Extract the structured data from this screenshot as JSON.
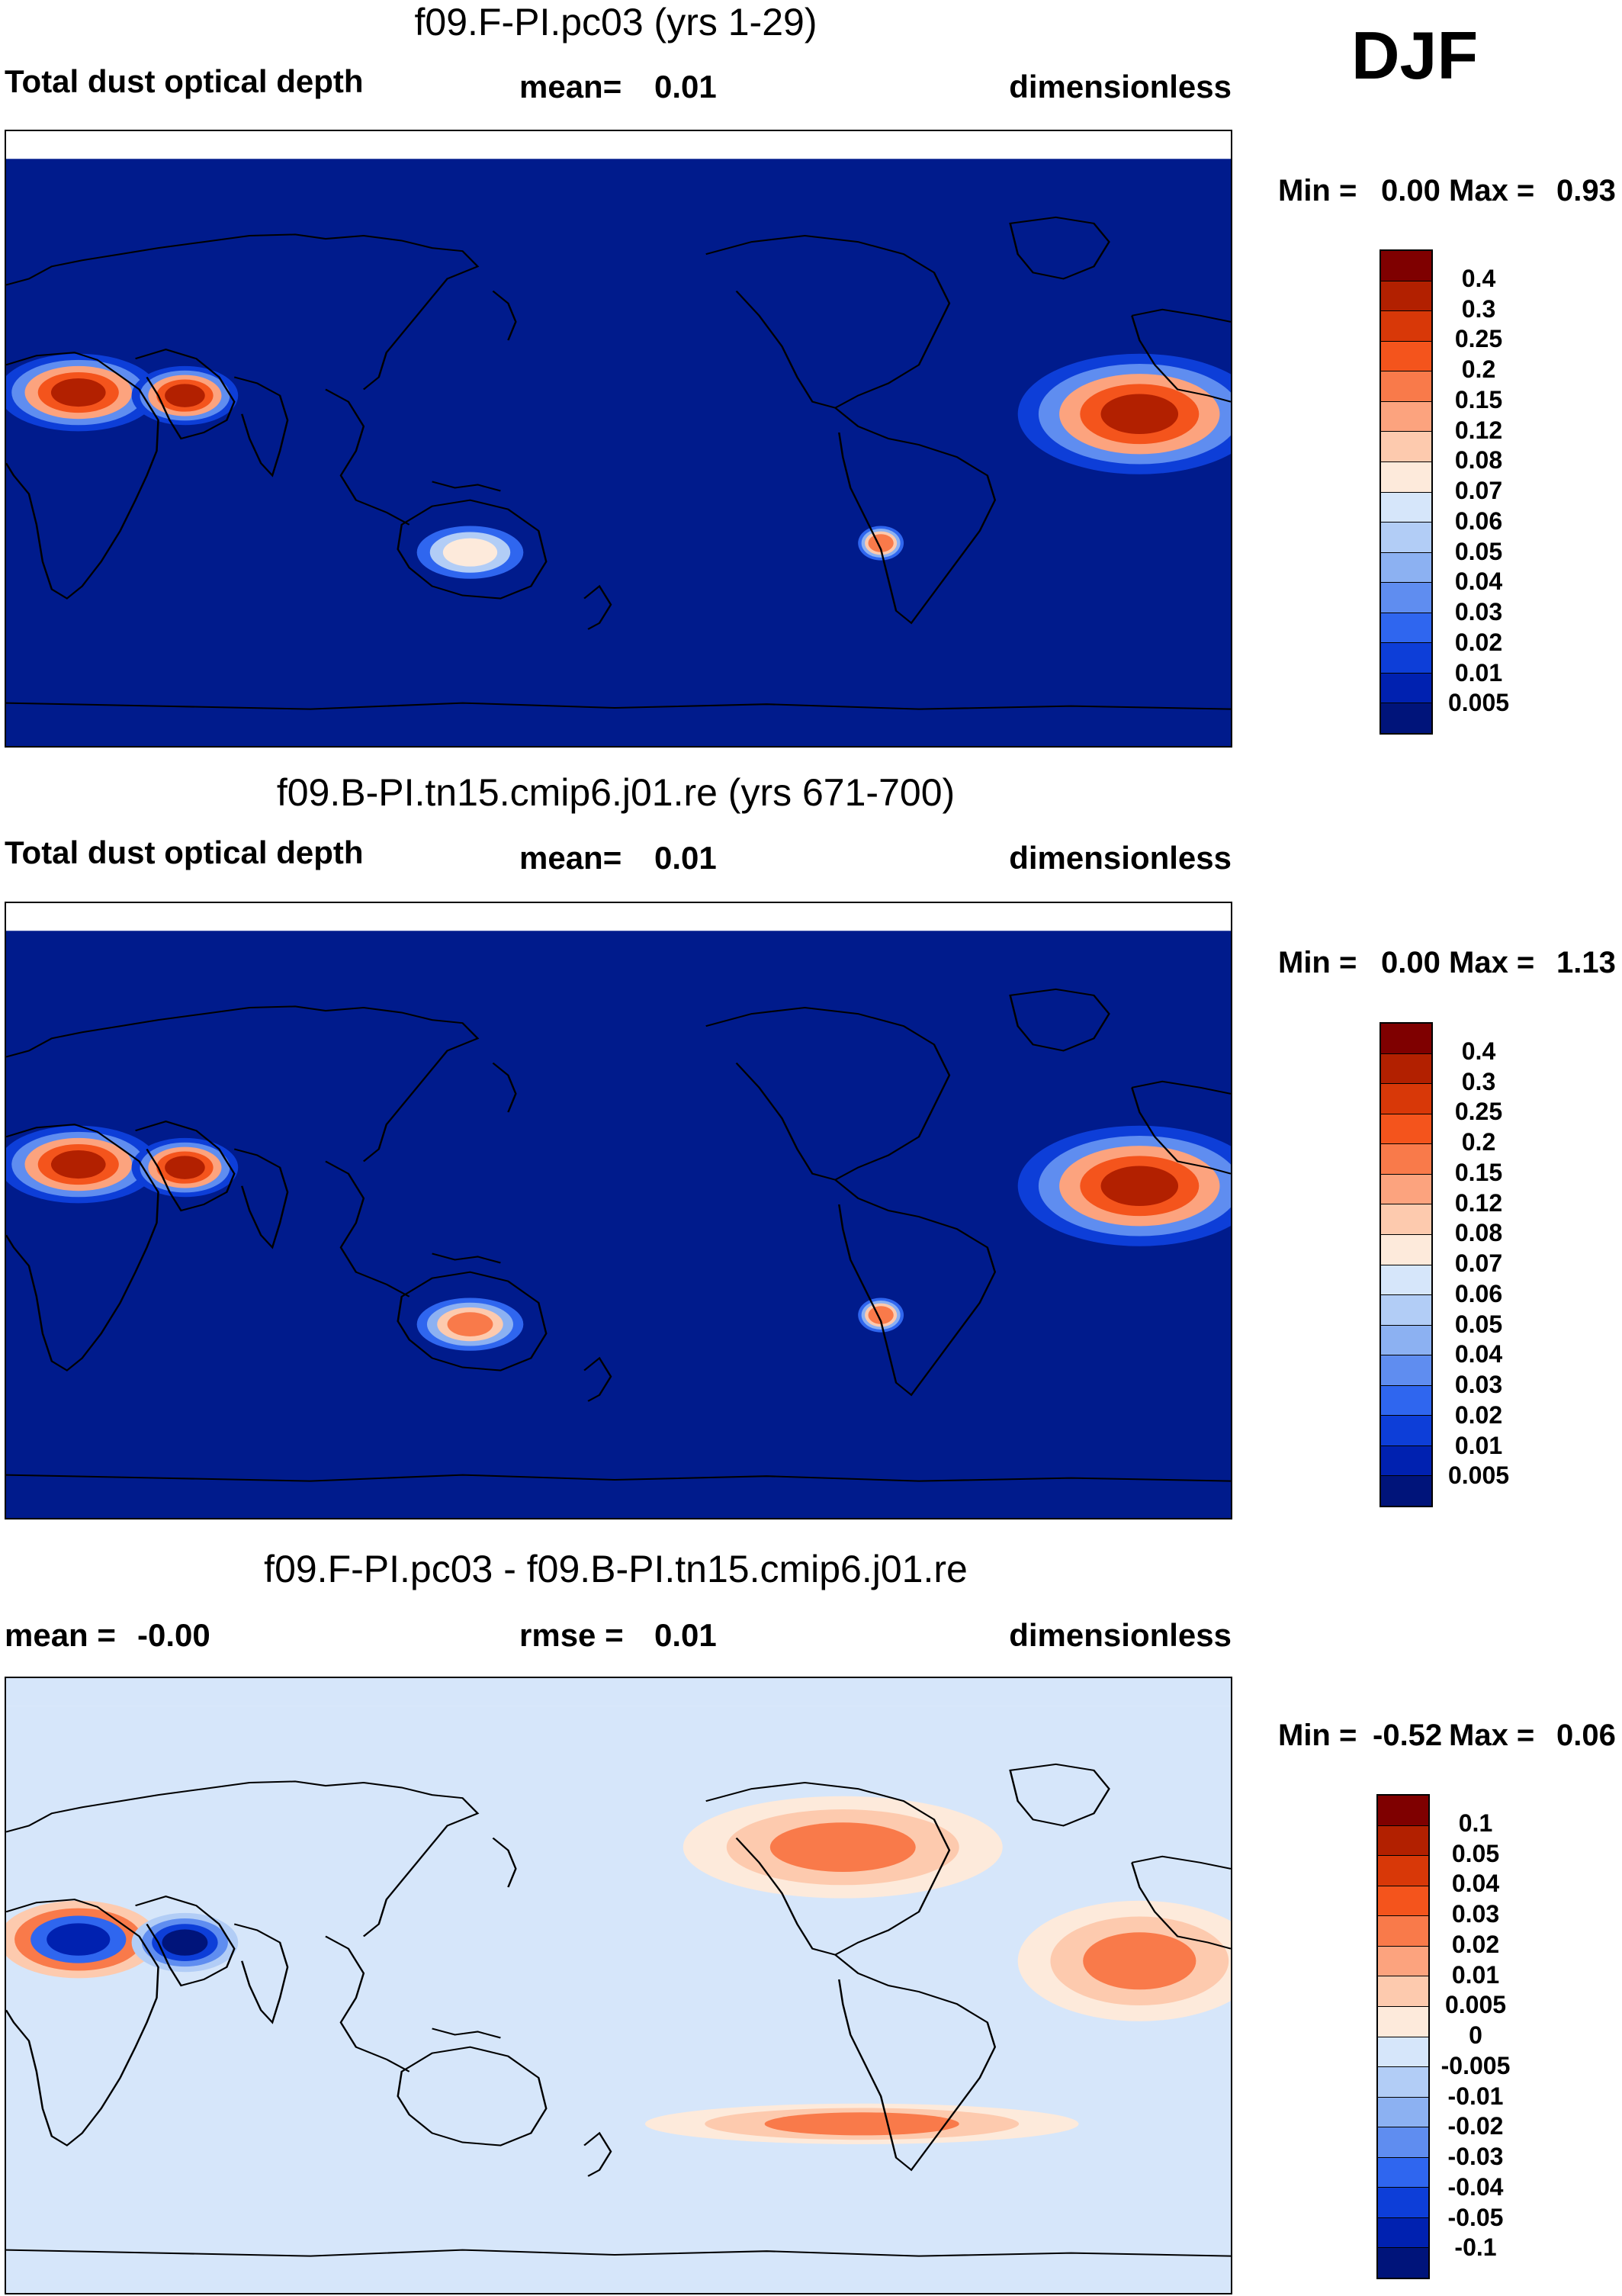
{
  "season": "DJF",
  "panels": [
    {
      "title": "f09.F-PI.pc03 (yrs 1-29)",
      "variable": "Total dust optical depth",
      "stat_label": "mean=",
      "stat_value": "0.01",
      "units": "dimensionless",
      "min_label": "Min =",
      "min_value": "0.00",
      "max_label": "Max =",
      "max_value": "0.93",
      "colorbar_labels": [
        "0.4",
        "0.3",
        "0.25",
        "0.2",
        "0.15",
        "0.12",
        "0.08",
        "0.07",
        "0.06",
        "0.05",
        "0.04",
        "0.03",
        "0.02",
        "0.01",
        "0.005"
      ],
      "colorbar_colors": [
        "#7f0000",
        "#b22000",
        "#d83808",
        "#f4541c",
        "#f97a4a",
        "#fca37e",
        "#fdcaae",
        "#fdeadb",
        "#d6e6fa",
        "#b2cdf6",
        "#8cb1f2",
        "#5f8df0",
        "#2f66ef",
        "#0d3ed8",
        "#0021b0",
        "#00147a"
      ],
      "field_color": "#001b8c",
      "hotspots": [
        {
          "region": "sahara",
          "intensity": "high"
        },
        {
          "region": "arabia",
          "intensity": "high"
        },
        {
          "region": "atlantic-plume",
          "intensity": "high"
        },
        {
          "region": "australia",
          "intensity": "low"
        },
        {
          "region": "atacama",
          "intensity": "medium"
        }
      ]
    },
    {
      "title": "f09.B-PI.tn15.cmip6.j01.re (yrs 671-700)",
      "variable": "Total dust optical depth",
      "stat_label": "mean=",
      "stat_value": "0.01",
      "units": "dimensionless",
      "min_label": "Min =",
      "min_value": "0.00",
      "max_label": "Max =",
      "max_value": "1.13",
      "colorbar_labels": [
        "0.4",
        "0.3",
        "0.25",
        "0.2",
        "0.15",
        "0.12",
        "0.08",
        "0.07",
        "0.06",
        "0.05",
        "0.04",
        "0.03",
        "0.02",
        "0.01",
        "0.005"
      ],
      "colorbar_colors": [
        "#7f0000",
        "#b22000",
        "#d83808",
        "#f4541c",
        "#f97a4a",
        "#fca37e",
        "#fdcaae",
        "#fdeadb",
        "#d6e6fa",
        "#b2cdf6",
        "#8cb1f2",
        "#5f8df0",
        "#2f66ef",
        "#0d3ed8",
        "#0021b0",
        "#00147a"
      ],
      "field_color": "#001b8c",
      "hotspots": [
        {
          "region": "sahara",
          "intensity": "high"
        },
        {
          "region": "arabia",
          "intensity": "high"
        },
        {
          "region": "atlantic-plume",
          "intensity": "high"
        },
        {
          "region": "australia",
          "intensity": "medium"
        },
        {
          "region": "atacama",
          "intensity": "medium"
        }
      ]
    },
    {
      "title": "f09.F-PI.pc03 - f09.B-PI.tn15.cmip6.j01.re",
      "mean_label": "mean =",
      "mean_value": "-0.00",
      "stat_label": "rmse =",
      "stat_value": "0.01",
      "units": "dimensionless",
      "min_label": "Min =",
      "min_value": "-0.52",
      "max_label": "Max =",
      "max_value": "0.06",
      "colorbar_labels": [
        "0.1",
        "0.05",
        "0.04",
        "0.03",
        "0.02",
        "0.01",
        "0.005",
        "0",
        "-0.005",
        "-0.01",
        "-0.02",
        "-0.03",
        "-0.04",
        "-0.05",
        "-0.1"
      ],
      "colorbar_colors": [
        "#7f0000",
        "#b22000",
        "#d83808",
        "#f4541c",
        "#f97a4a",
        "#fca37e",
        "#fdcaae",
        "#fdeadb",
        "#d6e6fa",
        "#b2cdf6",
        "#8cb1f2",
        "#5f8df0",
        "#2f66ef",
        "#0d3ed8",
        "#0021b0",
        "#00147a"
      ],
      "field_color": "#d6e6fa",
      "hotspots": [
        {
          "region": "sahara",
          "intensity": "mixed"
        },
        {
          "region": "arabia",
          "intensity": "negative"
        },
        {
          "region": "atlantic-plume",
          "intensity": "positive"
        },
        {
          "region": "equatorial-pacific",
          "intensity": "positive"
        },
        {
          "region": "north-america",
          "intensity": "positive"
        }
      ]
    }
  ]
}
